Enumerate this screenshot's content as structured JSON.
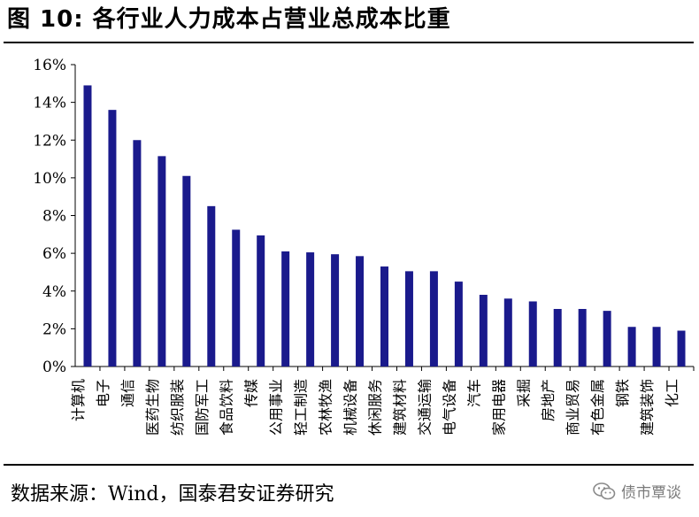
{
  "title": "图 10:  各行业人力成本占营业总成本比重",
  "source": "数据来源：Wind，国泰君安证券研究",
  "watermark": "债市覃谈",
  "chart_data": {
    "type": "bar",
    "title": "",
    "xlabel": "",
    "ylabel": "",
    "ylim": [
      0,
      16
    ],
    "ytick_labels": [
      "0%",
      "2%",
      "4%",
      "6%",
      "8%",
      "10%",
      "12%",
      "14%",
      "16%"
    ],
    "grid": false,
    "legend": "none",
    "bar_color": "#1a1a8c",
    "categories": [
      "计算机",
      "电子",
      "通信",
      "医药生物",
      "纺织服装",
      "国防军工",
      "食品饮料",
      "传媒",
      "公用事业",
      "轻工制造",
      "农林牧渔",
      "机械设备",
      "休闲服务",
      "建筑材料",
      "交通运输",
      "电气设备",
      "汽车",
      "家用电器",
      "采掘",
      "房地产",
      "商业贸易",
      "有色金属",
      "钢铁",
      "建筑装饰",
      "化工"
    ],
    "values": [
      14.9,
      13.6,
      12.0,
      11.15,
      10.1,
      8.5,
      7.25,
      6.95,
      6.1,
      6.05,
      5.95,
      5.85,
      5.3,
      5.05,
      5.05,
      4.5,
      3.8,
      3.6,
      3.45,
      3.05,
      3.05,
      2.95,
      2.1,
      2.1,
      1.9
    ],
    "unit": "%"
  }
}
